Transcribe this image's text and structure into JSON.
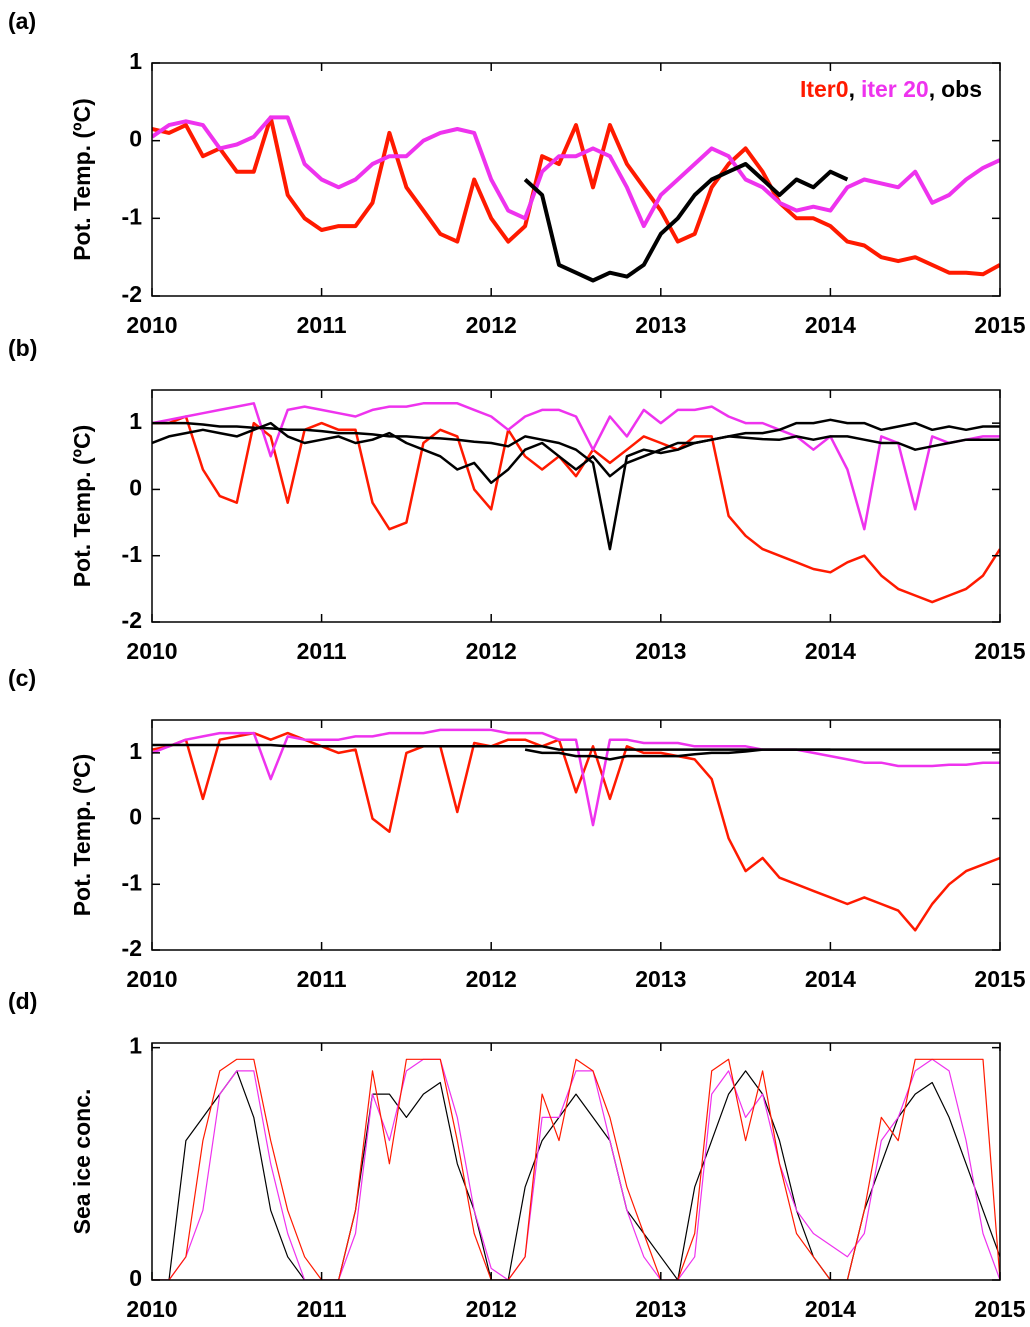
{
  "chart_data": [
    {
      "type": "line",
      "panel_label": "(a)",
      "ylabel": "Pot. Temp. (ºC)",
      "legend": "upper right",
      "legend_separator": ",",
      "xlim": [
        2010,
        2015
      ],
      "xticks": [
        2010,
        2011,
        2012,
        2013,
        2014,
        2015
      ],
      "ylim": [
        -2,
        1
      ],
      "yticks": [
        -2,
        -1,
        0,
        1
      ],
      "x": [
        2010.0,
        2010.1,
        2010.2,
        2010.3,
        2010.4,
        2010.5,
        2010.6,
        2010.7,
        2010.8,
        2010.9,
        2011.0,
        2011.1,
        2011.2,
        2011.3,
        2011.4,
        2011.5,
        2011.6,
        2011.7,
        2011.8,
        2011.9,
        2012.0,
        2012.1,
        2012.2,
        2012.3,
        2012.4,
        2012.5,
        2012.6,
        2012.7,
        2012.8,
        2012.9,
        2013.0,
        2013.1,
        2013.2,
        2013.3,
        2013.4,
        2013.5,
        2013.6,
        2013.7,
        2013.8,
        2013.9,
        2014.0,
        2014.1,
        2014.2,
        2014.3,
        2014.4,
        2014.5,
        2014.6,
        2014.7,
        2014.8,
        2014.9,
        2015.0
      ],
      "series": [
        {
          "name": "Iter0",
          "color": "#ff1a00",
          "values": [
            0.15,
            0.1,
            0.2,
            -0.2,
            -0.1,
            -0.4,
            -0.4,
            0.3,
            -0.7,
            -1.0,
            -1.15,
            -1.1,
            -1.1,
            -0.8,
            0.1,
            -0.6,
            -0.9,
            -1.2,
            -1.3,
            -0.5,
            -1.0,
            -1.3,
            -1.1,
            -0.2,
            -0.3,
            0.2,
            -0.6,
            0.2,
            -0.3,
            -0.6,
            -0.9,
            -1.3,
            -1.2,
            -0.6,
            -0.3,
            -0.1,
            -0.4,
            -0.8,
            -1.0,
            -1.0,
            -1.1,
            -1.3,
            -1.35,
            -1.5,
            -1.55,
            -1.5,
            -1.6,
            -1.7,
            -1.7,
            -1.72,
            -1.6
          ]
        },
        {
          "name": "iter 20",
          "color": "#ee33ee",
          "values": [
            0.05,
            0.2,
            0.25,
            0.2,
            -0.1,
            -0.05,
            0.05,
            0.3,
            0.3,
            -0.3,
            -0.5,
            -0.6,
            -0.5,
            -0.3,
            -0.2,
            -0.2,
            0.0,
            0.1,
            0.15,
            0.1,
            -0.5,
            -0.9,
            -1.0,
            -0.4,
            -0.2,
            -0.2,
            -0.1,
            -0.2,
            -0.6,
            -1.1,
            -0.7,
            -0.5,
            -0.3,
            -0.1,
            -0.2,
            -0.5,
            -0.6,
            -0.8,
            -0.9,
            -0.85,
            -0.9,
            -0.6,
            -0.5,
            -0.55,
            -0.6,
            -0.4,
            -0.8,
            -0.7,
            -0.5,
            -0.35,
            -0.25
          ]
        },
        {
          "name": "obs",
          "color": "#000000",
          "values": [
            null,
            null,
            null,
            null,
            null,
            null,
            null,
            null,
            null,
            null,
            null,
            null,
            null,
            null,
            null,
            null,
            null,
            null,
            null,
            null,
            null,
            null,
            -0.5,
            -0.7,
            -1.6,
            -1.7,
            -1.8,
            -1.7,
            -1.75,
            -1.6,
            -1.2,
            -1.0,
            -0.7,
            -0.5,
            -0.4,
            -0.3,
            -0.5,
            -0.7,
            -0.5,
            -0.6,
            -0.4,
            -0.5,
            null,
            null,
            null,
            null,
            null,
            null,
            null,
            null,
            null
          ]
        }
      ]
    },
    {
      "type": "line",
      "panel_label": "(b)",
      "ylabel": "Pot. Temp. (ºC)",
      "xlim": [
        2010,
        2015
      ],
      "xticks": [
        2010,
        2011,
        2012,
        2013,
        2014,
        2015
      ],
      "ylim": [
        -2,
        1.5
      ],
      "yticks": [
        -2,
        -1,
        0,
        1
      ],
      "x": [
        2010.0,
        2010.1,
        2010.2,
        2010.3,
        2010.4,
        2010.5,
        2010.6,
        2010.7,
        2010.8,
        2010.9,
        2011.0,
        2011.1,
        2011.2,
        2011.3,
        2011.4,
        2011.5,
        2011.6,
        2011.7,
        2011.8,
        2011.9,
        2012.0,
        2012.1,
        2012.2,
        2012.3,
        2012.4,
        2012.5,
        2012.6,
        2012.7,
        2012.8,
        2012.9,
        2013.0,
        2013.1,
        2013.2,
        2013.3,
        2013.4,
        2013.5,
        2013.6,
        2013.7,
        2013.8,
        2013.9,
        2014.0,
        2014.1,
        2014.2,
        2014.3,
        2014.4,
        2014.5,
        2014.6,
        2014.7,
        2014.8,
        2014.9,
        2015.0
      ],
      "series": [
        {
          "name": "Iter0",
          "color": "#ff1a00",
          "values": [
            1.0,
            1.0,
            1.1,
            0.3,
            -0.1,
            -0.2,
            1.0,
            0.8,
            -0.2,
            0.9,
            1.0,
            0.9,
            0.9,
            -0.2,
            -0.6,
            -0.5,
            0.7,
            0.9,
            0.8,
            0.0,
            -0.3,
            0.9,
            0.5,
            0.3,
            0.5,
            0.2,
            0.6,
            0.4,
            0.6,
            0.8,
            0.7,
            0.6,
            0.8,
            0.8,
            -0.4,
            -0.7,
            -0.9,
            -1.0,
            -1.1,
            -1.2,
            -1.25,
            -1.1,
            -1.0,
            -1.3,
            -1.5,
            -1.6,
            -1.7,
            -1.6,
            -1.5,
            -1.3,
            -0.9
          ]
        },
        {
          "name": "iter 20",
          "color": "#ee33ee",
          "values": [
            1.0,
            1.05,
            1.1,
            1.15,
            1.2,
            1.25,
            1.3,
            0.5,
            1.2,
            1.25,
            1.2,
            1.15,
            1.1,
            1.2,
            1.25,
            1.25,
            1.3,
            1.3,
            1.3,
            1.2,
            1.1,
            0.9,
            1.1,
            1.2,
            1.2,
            1.1,
            0.6,
            1.1,
            0.8,
            1.2,
            1.0,
            1.2,
            1.2,
            1.25,
            1.1,
            1.0,
            1.0,
            0.9,
            0.8,
            0.6,
            0.8,
            0.3,
            -0.6,
            0.8,
            0.7,
            -0.3,
            0.8,
            0.7,
            0.75,
            0.8,
            0.8
          ]
        },
        {
          "name": "obs",
          "color": "#000000",
          "values": [
            1.0,
            1.0,
            1.0,
            0.98,
            0.95,
            0.95,
            0.93,
            0.92,
            0.9,
            0.9,
            0.88,
            0.85,
            0.85,
            0.83,
            0.8,
            0.8,
            0.78,
            0.77,
            0.75,
            0.72,
            0.7,
            0.65,
            0.8,
            0.75,
            0.7,
            0.6,
            0.4,
            -0.9,
            0.5,
            0.6,
            0.55,
            0.6,
            0.7,
            0.75,
            0.8,
            0.85,
            0.85,
            0.9,
            1.0,
            1.0,
            1.05,
            1.0,
            1.0,
            0.9,
            0.95,
            1.0,
            0.9,
            0.95,
            0.9,
            0.95,
            0.95
          ]
        },
        {
          "name": "obs",
          "color": "#000000",
          "values": [
            0.7,
            0.8,
            0.85,
            0.9,
            0.85,
            0.8,
            0.9,
            1.0,
            0.8,
            0.7,
            0.75,
            0.8,
            0.7,
            0.75,
            0.85,
            0.7,
            0.6,
            0.5,
            0.3,
            0.4,
            0.1,
            0.3,
            0.6,
            0.7,
            0.5,
            0.3,
            0.5,
            0.2,
            0.4,
            0.5,
            0.6,
            0.7,
            0.7,
            0.75,
            0.8,
            0.78,
            0.76,
            0.75,
            0.8,
            0.75,
            0.8,
            0.8,
            0.75,
            0.7,
            0.7,
            0.6,
            0.65,
            0.7,
            0.75,
            0.75,
            0.75
          ]
        }
      ]
    },
    {
      "type": "line",
      "panel_label": "(c)",
      "ylabel": "Pot. Temp. (ºC)",
      "xlim": [
        2010,
        2015
      ],
      "xticks": [
        2010,
        2011,
        2012,
        2013,
        2014,
        2015
      ],
      "ylim": [
        -2,
        1.5
      ],
      "yticks": [
        -2,
        -1,
        0,
        1
      ],
      "x": [
        2010.0,
        2010.1,
        2010.2,
        2010.3,
        2010.4,
        2010.5,
        2010.6,
        2010.7,
        2010.8,
        2010.9,
        2011.0,
        2011.1,
        2011.2,
        2011.3,
        2011.4,
        2011.5,
        2011.6,
        2011.7,
        2011.8,
        2011.9,
        2012.0,
        2012.1,
        2012.2,
        2012.3,
        2012.4,
        2012.5,
        2012.6,
        2012.7,
        2012.8,
        2012.9,
        2013.0,
        2013.1,
        2013.2,
        2013.3,
        2013.4,
        2013.5,
        2013.6,
        2013.7,
        2013.8,
        2013.9,
        2014.0,
        2014.1,
        2014.2,
        2014.3,
        2014.4,
        2014.5,
        2014.6,
        2014.7,
        2014.8,
        2014.9,
        2015.0
      ],
      "series": [
        {
          "name": "Iter0",
          "color": "#ff1a00",
          "values": [
            1.05,
            1.1,
            1.2,
            0.3,
            1.2,
            1.25,
            1.3,
            1.2,
            1.3,
            1.2,
            1.1,
            1.0,
            1.05,
            0.0,
            -0.2,
            1.0,
            1.1,
            1.1,
            0.1,
            1.15,
            1.1,
            1.2,
            1.2,
            1.1,
            1.2,
            0.4,
            1.1,
            0.3,
            1.1,
            1.0,
            1.0,
            0.95,
            0.9,
            0.6,
            -0.3,
            -0.8,
            -0.6,
            -0.9,
            -1.0,
            -1.1,
            -1.2,
            -1.3,
            -1.2,
            -1.3,
            -1.4,
            -1.7,
            -1.3,
            -1.0,
            -0.8,
            -0.7,
            -0.6
          ]
        },
        {
          "name": "iter 20",
          "color": "#ee33ee",
          "values": [
            1.0,
            1.1,
            1.2,
            1.25,
            1.3,
            1.3,
            1.3,
            0.6,
            1.25,
            1.2,
            1.2,
            1.2,
            1.25,
            1.25,
            1.3,
            1.3,
            1.3,
            1.35,
            1.35,
            1.35,
            1.35,
            1.3,
            1.3,
            1.3,
            1.2,
            1.2,
            -0.1,
            1.2,
            1.2,
            1.15,
            1.15,
            1.15,
            1.1,
            1.1,
            1.1,
            1.1,
            1.05,
            1.05,
            1.05,
            1.0,
            0.95,
            0.9,
            0.85,
            0.85,
            0.8,
            0.8,
            0.8,
            0.82,
            0.82,
            0.85,
            0.85
          ]
        },
        {
          "name": "obs",
          "color": "#000000",
          "values": [
            1.12,
            1.12,
            1.12,
            1.12,
            1.12,
            1.12,
            1.12,
            1.12,
            1.1,
            1.1,
            1.1,
            1.1,
            1.1,
            1.1,
            1.1,
            1.1,
            1.1,
            1.1,
            1.1,
            1.1,
            1.1,
            1.1,
            1.1,
            1.1,
            1.05,
            1.05,
            1.05,
            1.05,
            1.05,
            1.05,
            1.05,
            1.05,
            1.05,
            1.05,
            1.05,
            1.05,
            1.05,
            1.05,
            1.05,
            1.05,
            1.05,
            1.05,
            1.05,
            1.05,
            1.05,
            1.05,
            1.05,
            1.05,
            1.05,
            1.05,
            1.05
          ]
        },
        {
          "name": "obs",
          "color": "#000000",
          "values": [
            null,
            null,
            null,
            null,
            null,
            null,
            null,
            null,
            null,
            null,
            null,
            null,
            null,
            null,
            null,
            null,
            null,
            null,
            null,
            null,
            null,
            null,
            1.05,
            1.0,
            1.0,
            0.95,
            0.95,
            0.9,
            0.95,
            0.95,
            0.95,
            0.95,
            0.98,
            1.0,
            1.0,
            1.02,
            1.05,
            1.05,
            1.05,
            1.05,
            1.05,
            null,
            null,
            null,
            null,
            null,
            null,
            null,
            null,
            null,
            null
          ]
        }
      ]
    },
    {
      "type": "line",
      "panel_label": "(d)",
      "ylabel": "Sea ice conc.",
      "xlim": [
        2010,
        2015
      ],
      "xticks": [
        2010,
        2011,
        2012,
        2013,
        2014,
        2015
      ],
      "ylim": [
        0,
        1.02
      ],
      "yticks": [
        0,
        1
      ],
      "x": [
        2010.0,
        2010.1,
        2010.2,
        2010.3,
        2010.4,
        2010.5,
        2010.6,
        2010.7,
        2010.8,
        2010.9,
        2011.0,
        2011.1,
        2011.2,
        2011.3,
        2011.4,
        2011.5,
        2011.6,
        2011.7,
        2011.8,
        2011.9,
        2012.0,
        2012.1,
        2012.2,
        2012.3,
        2012.4,
        2012.5,
        2012.6,
        2012.7,
        2012.8,
        2012.9,
        2013.0,
        2013.1,
        2013.2,
        2013.3,
        2013.4,
        2013.5,
        2013.6,
        2013.7,
        2013.8,
        2013.9,
        2014.0,
        2014.1,
        2014.2,
        2014.3,
        2014.4,
        2014.5,
        2014.6,
        2014.7,
        2014.8,
        2014.9,
        2015.0
      ],
      "series": [
        {
          "name": "obs",
          "color": "#000000",
          "values": [
            0,
            0,
            0.6,
            0.7,
            0.8,
            0.9,
            0.7,
            0.3,
            0.1,
            0,
            0,
            0,
            0.3,
            0.8,
            0.8,
            0.7,
            0.8,
            0.85,
            0.5,
            0.3,
            0,
            0,
            0.4,
            0.6,
            0.7,
            0.8,
            0.7,
            0.6,
            0.3,
            0.2,
            0.1,
            0,
            0.4,
            0.6,
            0.8,
            0.9,
            0.8,
            0.6,
            0.3,
            0.1,
            0,
            0,
            0.3,
            0.5,
            0.7,
            0.8,
            0.85,
            0.7,
            0.5,
            0.3,
            0.1
          ]
        },
        {
          "name": "iter 20",
          "color": "#ee33ee",
          "values": [
            0,
            0,
            0.1,
            0.3,
            0.8,
            0.9,
            0.9,
            0.5,
            0.2,
            0.0,
            0,
            0,
            0.2,
            0.8,
            0.6,
            0.9,
            0.95,
            0.95,
            0.7,
            0.3,
            0.05,
            0,
            0.1,
            0.7,
            0.7,
            0.9,
            0.9,
            0.6,
            0.3,
            0.1,
            0,
            0,
            0.1,
            0.8,
            0.9,
            0.7,
            0.8,
            0.5,
            0.3,
            0.2,
            0.15,
            0.1,
            0.2,
            0.6,
            0.7,
            0.9,
            0.95,
            0.9,
            0.6,
            0.2,
            0
          ]
        },
        {
          "name": "Iter0",
          "color": "#ff1a00",
          "values": [
            0,
            0,
            0.1,
            0.6,
            0.9,
            0.95,
            0.95,
            0.6,
            0.3,
            0.1,
            0,
            0,
            0.3,
            0.9,
            0.5,
            0.95,
            0.95,
            0.95,
            0.6,
            0.2,
            0,
            0,
            0.1,
            0.8,
            0.6,
            0.95,
            0.9,
            0.7,
            0.4,
            0.2,
            0,
            0,
            0.2,
            0.9,
            0.95,
            0.6,
            0.9,
            0.5,
            0.2,
            0.1,
            0,
            0,
            0.3,
            0.7,
            0.6,
            0.95,
            0.95,
            0.95,
            0.95,
            0.95,
            0
          ]
        }
      ]
    }
  ]
}
